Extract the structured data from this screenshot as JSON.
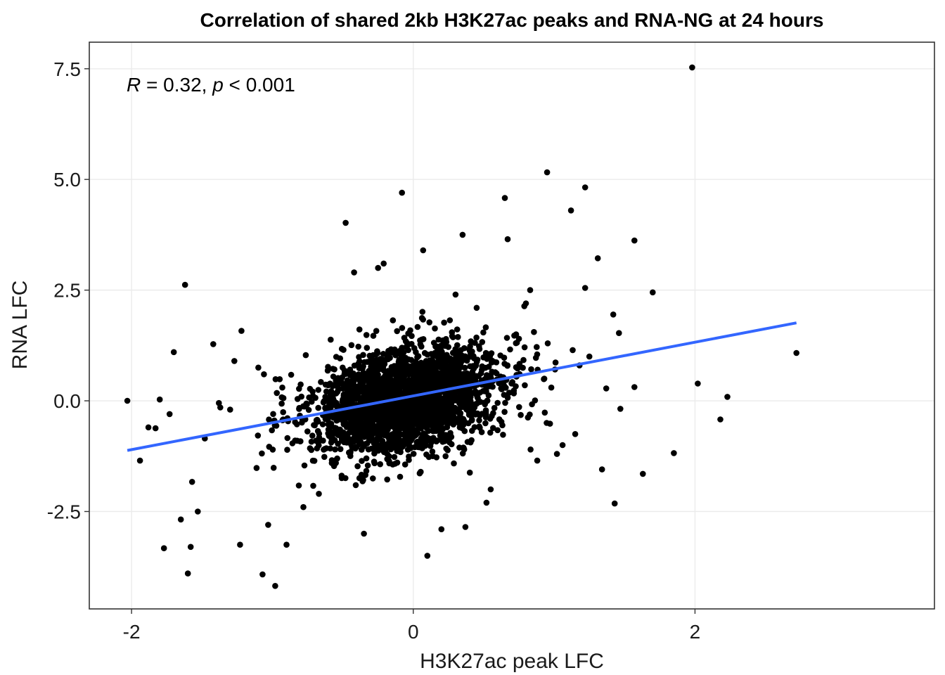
{
  "chart_data": {
    "type": "scatter",
    "title": "Correlation of shared 2kb H3K27ac peaks and RNA-NG  at 24 hours",
    "xlabel": "H3K27ac peak LFC",
    "ylabel": "RNA LFC",
    "xlim": [
      -2.3,
      3.7
    ],
    "ylim": [
      -4.7,
      8.1
    ],
    "x_ticks": [
      -2,
      0,
      2
    ],
    "x_tick_labels": [
      "-2",
      "0",
      "2"
    ],
    "y_ticks": [
      -2.5,
      0,
      2.5,
      5,
      7.5
    ],
    "y_tick_labels": [
      "-2.5",
      "0.0",
      "2.5",
      "5.0",
      "7.5"
    ],
    "grid": true,
    "legend": "none",
    "point_color": "#000000",
    "fit_color": "#3366FF",
    "annotation": {
      "r_symbol": "R",
      "r_text": " = 0.32, ",
      "p_symbol": "p",
      "p_text": " < 0.001"
    },
    "fit_line": {
      "x": [
        -2.03,
        2.72
      ],
      "y": [
        -1.12,
        1.76
      ]
    },
    "cluster": {
      "n": 2600,
      "x_mean": -0.05,
      "x_sd": 0.33,
      "y_mean": 0.0,
      "y_sd": 0.62,
      "corr": 0.3
    },
    "outliers": {
      "x": [
        1.98,
        0.95,
        1.22,
        1.12,
        0.65,
        -0.48,
        -0.08,
        1.57,
        0.35,
        0.67,
        1.31,
        1.7,
        -1.62,
        1.42,
        1.22,
        0.83,
        1.46,
        2.72,
        2.02,
        1.57,
        2.23,
        1.37,
        1.47,
        2.18,
        -2.03,
        -1.94,
        -1.8,
        -1.83,
        -1.73,
        -1.48,
        -1.42,
        -1.22,
        -1.1,
        -1.06,
        -0.93,
        -1.65,
        -1.77,
        -1.6,
        -1.58,
        -1.23,
        -1.07,
        -0.98,
        1.34,
        1.43,
        1.63,
        1.85,
        -1.53,
        -1.57,
        -1.03,
        -0.9,
        0.2,
        0.1,
        0.37,
        -0.35,
        0.55,
        1.15,
        1.02,
        1.06,
        0.88,
        0.98,
        0.93,
        1.18,
        1.25,
        0.45,
        0.3,
        -0.25,
        0.07,
        -0.21,
        -0.42,
        -1.3,
        -1.38,
        -1.37,
        -1.27,
        -1.7,
        -1.88,
        -0.78,
        -0.67,
        0.52,
        0.73,
        0.8
      ],
      "y": [
        7.53,
        5.16,
        4.82,
        4.3,
        4.58,
        4.02,
        4.7,
        3.62,
        3.75,
        3.65,
        3.22,
        2.45,
        2.62,
        1.95,
        2.55,
        2.5,
        1.53,
        1.08,
        0.39,
        0.31,
        0.09,
        0.28,
        -0.18,
        -0.42,
        0.0,
        -1.35,
        0.03,
        -0.62,
        -0.3,
        -0.85,
        1.28,
        1.58,
        0.75,
        0.6,
        0.3,
        -2.68,
        -3.33,
        -3.9,
        -3.3,
        -3.25,
        -3.92,
        -4.18,
        -1.55,
        -2.32,
        -1.65,
        -1.18,
        -2.5,
        -1.83,
        -2.8,
        -3.25,
        -2.9,
        -3.5,
        -2.85,
        -3.0,
        -2.0,
        -0.75,
        -1.2,
        -1.0,
        -1.35,
        0.3,
        0.5,
        0.8,
        1.0,
        2.1,
        2.4,
        3.0,
        3.4,
        3.1,
        2.9,
        -0.2,
        -0.05,
        -0.15,
        0.9,
        1.1,
        -0.6,
        -2.4,
        -2.1,
        -2.3,
        1.5,
        2.2
      ]
    }
  }
}
